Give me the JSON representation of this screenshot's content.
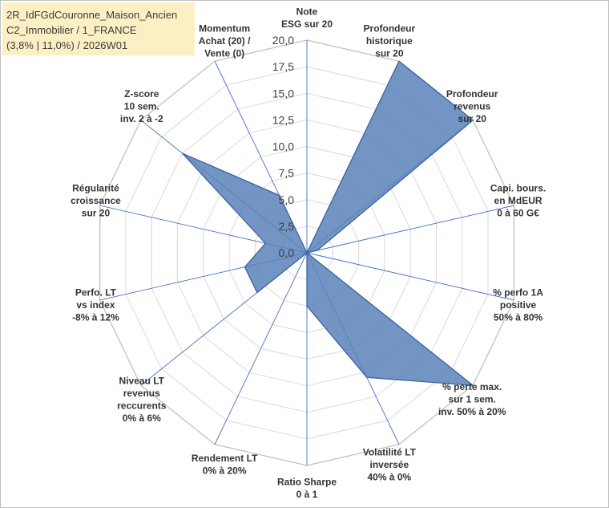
{
  "header": {
    "line1": "2R_IdFGdCouronne_Maison_Ancien",
    "line2": "C2_Immobilier / 1_FRANCE",
    "line3": "(3,8% | 11,0%) / 2026W01"
  },
  "colors": {
    "fill": "#5b82b8",
    "stroke": "#3d63a0",
    "spoke": "#4472c4",
    "grid": "#d9d9d9",
    "title_bg": "#fbf0c4"
  },
  "chart_data": {
    "type": "radar",
    "rmin": 0,
    "rmax": 20,
    "ticks": [
      "0,0",
      "2,5",
      "5,0",
      "7,5",
      "10,0",
      "12,5",
      "15,0",
      "17,5",
      "20,0"
    ],
    "axes": [
      [
        "Note",
        "ESG sur 20"
      ],
      [
        "Profondeur",
        "historique",
        "sur 20"
      ],
      [
        "Profondeur",
        "revenus",
        "sur 20"
      ],
      [
        "Capi. bours.",
        "en MdEUR",
        "0 à 60 G€"
      ],
      [
        "% perfo 1A",
        "positive",
        "50% à 80%"
      ],
      [
        "% perte max.",
        "sur 1 sem.",
        "inv. 50% à 20%"
      ],
      [
        "Volatilité LT",
        "inversée",
        "40% à 0%"
      ],
      [
        "Ratio Sharpe",
        "0 à 1"
      ],
      [
        "Rendement LT",
        "0% à 20%"
      ],
      [
        "Niveau LT",
        "revenus",
        "reccurents",
        "0% à 6%"
      ],
      [
        "Perfo. LT",
        "vs index",
        "-8% à 12%"
      ],
      [
        "Régularité",
        "croissance",
        "sur 20"
      ],
      [
        "Z-score",
        "10 sem.",
        "inv. 2 à -2"
      ],
      [
        "Momentum",
        "Achat (20) /",
        "Vente (0)"
      ]
    ],
    "series": [
      {
        "values": [
          0,
          20,
          20,
          1,
          0,
          20,
          13,
          5,
          0,
          6,
          6,
          4,
          15,
          6
        ]
      }
    ],
    "grid": true
  }
}
